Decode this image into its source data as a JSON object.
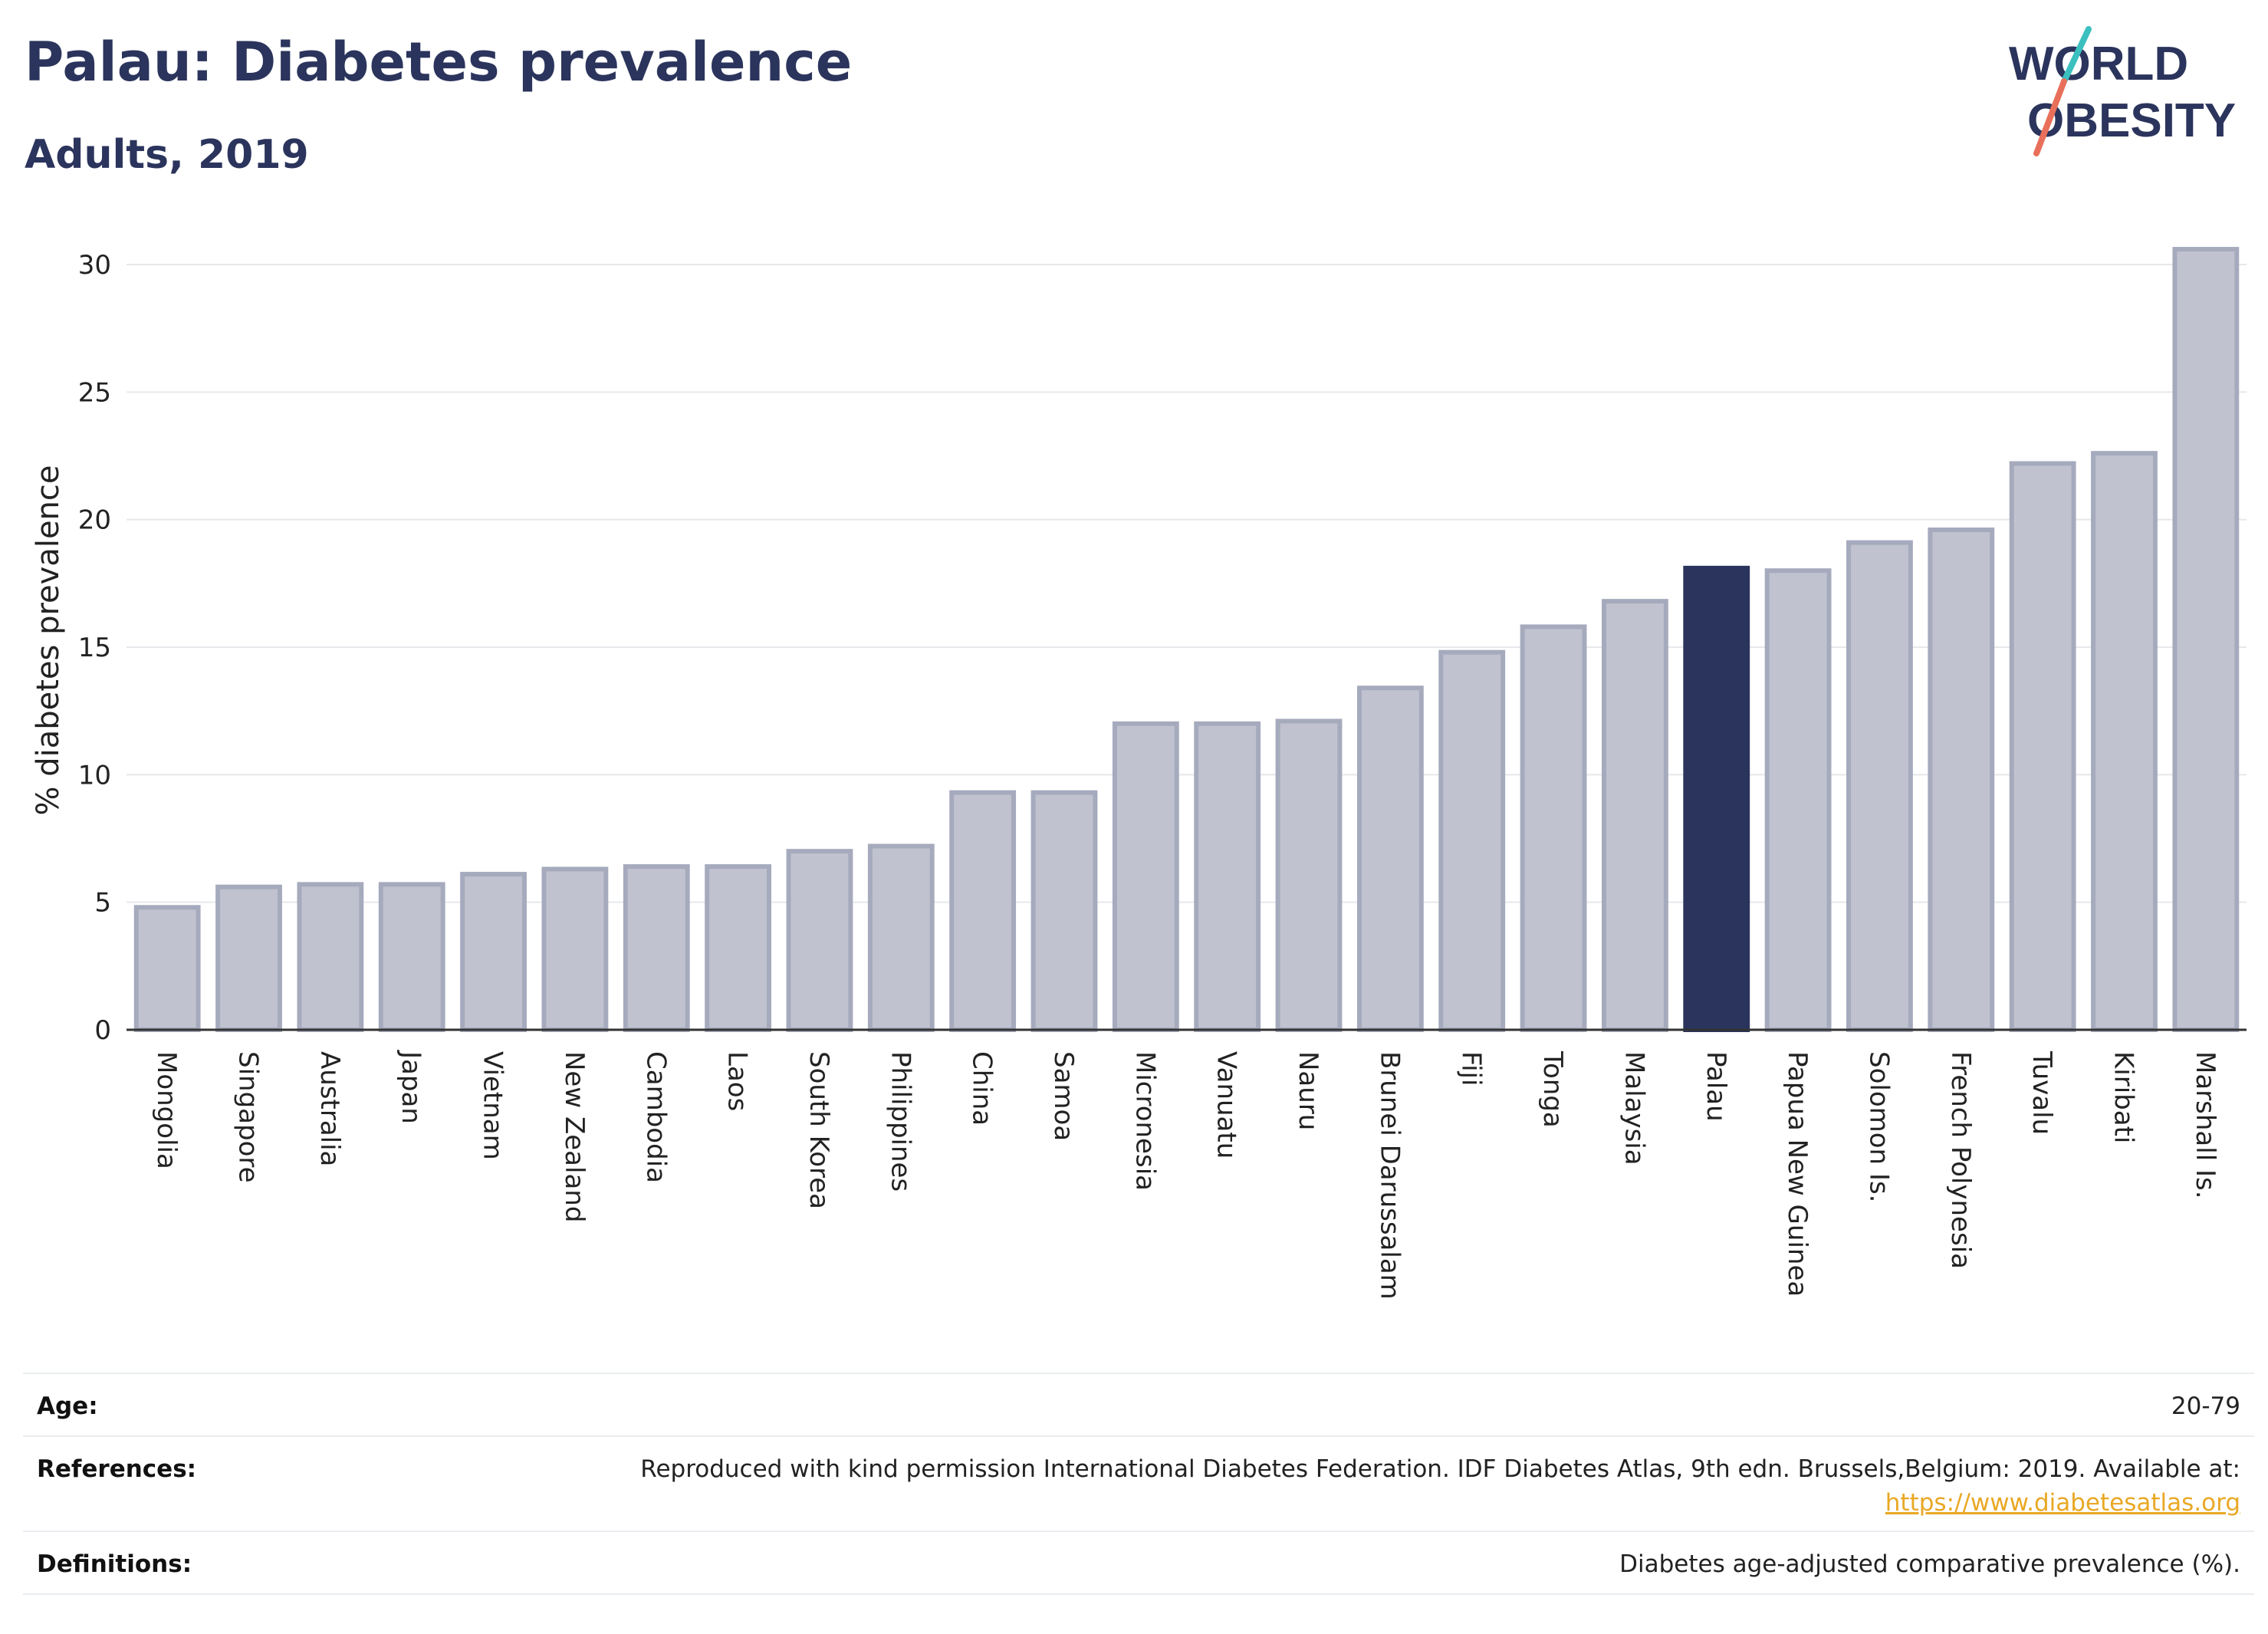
{
  "header": {
    "title": "Palau: Diabetes prevalence",
    "subtitle": "Adults, 2019",
    "logo_line1": "WORLD",
    "logo_line2": "OBESITY"
  },
  "colors": {
    "highlight_bar": "#2b345c",
    "bar_fill": "#c0c3cf",
    "bar_stroke": "#a6aabd",
    "title": "#2b345c",
    "grid": "#e6e8ec",
    "link": "#e9a825",
    "logo_teal": "#3bbfbf",
    "logo_coral": "#e8705a"
  },
  "chart_data": {
    "type": "bar",
    "title": "Palau: Diabetes prevalence",
    "subtitle": "Adults, 2019",
    "xlabel": "",
    "ylabel": "% diabetes prevalence",
    "ylim": [
      0,
      32
    ],
    "yticks": [
      0,
      5,
      10,
      15,
      20,
      25,
      30
    ],
    "grid": true,
    "highlight": "Palau",
    "categories": [
      "Mongolia",
      "Singapore",
      "Australia",
      "Japan",
      "Vietnam",
      "New Zealand",
      "Cambodia",
      "Laos",
      "South Korea",
      "Philippines",
      "China",
      "Samoa",
      "Micronesia",
      "Vanuatu",
      "Nauru",
      "Brunei Darussalam",
      "Fiji",
      "Tonga",
      "Malaysia",
      "Palau",
      "Papua New Guinea",
      "Solomon Is.",
      "French Polynesia",
      "Tuvalu",
      "Kiribati",
      "Marshall Is."
    ],
    "values": [
      4.8,
      5.6,
      5.7,
      5.7,
      6.1,
      6.3,
      6.4,
      6.4,
      7.0,
      7.2,
      9.3,
      9.3,
      12.0,
      12.0,
      12.1,
      13.4,
      14.8,
      15.8,
      16.8,
      18.1,
      18.0,
      19.1,
      19.6,
      22.2,
      22.6,
      30.6
    ]
  },
  "meta": {
    "age_label": "Age:",
    "age_value": "20-79",
    "references_label": "References:",
    "references_text": "Reproduced with kind permission International Diabetes Federation. IDF Diabetes Atlas, 9th edn. Brussels,Belgium: 2019. Available at:",
    "references_link": "https://www.diabetesatlas.org",
    "definitions_label": "Definitions:",
    "definitions_value": "Diabetes age-adjusted comparative prevalence (%)."
  }
}
